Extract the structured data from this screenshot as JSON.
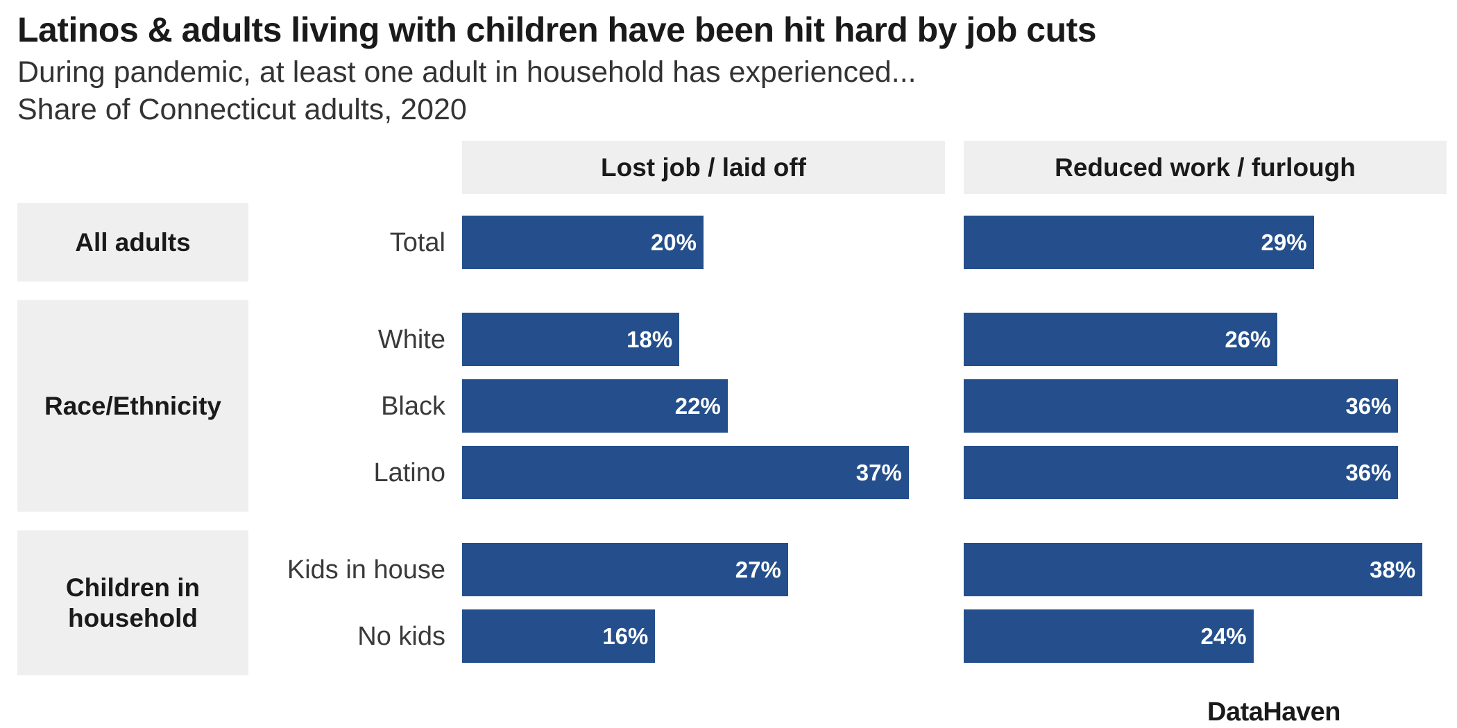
{
  "chart_data": {
    "type": "bar",
    "orientation": "horizontal",
    "title": "Latinos & adults living with children have been hit hard by job cuts",
    "subtitle_lines": [
      "During pandemic, at least one adult in household has experienced...",
      "Share of Connecticut adults, 2020"
    ],
    "facets": [
      "Lost job / laid off",
      "Reduced work / furlough"
    ],
    "groups": [
      {
        "label": "All adults",
        "rows": [
          {
            "label": "Total",
            "values": [
              20,
              29
            ],
            "value_labels": [
              "20%",
              "29%"
            ]
          }
        ]
      },
      {
        "label": "Race/Ethnicity",
        "rows": [
          {
            "label": "White",
            "values": [
              18,
              26
            ],
            "value_labels": [
              "18%",
              "26%"
            ]
          },
          {
            "label": "Black",
            "values": [
              22,
              36
            ],
            "value_labels": [
              "22%",
              "36%"
            ]
          },
          {
            "label": "Latino",
            "values": [
              37,
              36
            ],
            "value_labels": [
              "37%",
              "36%"
            ]
          }
        ]
      },
      {
        "label": "Children in household",
        "rows": [
          {
            "label": "Kids in house",
            "values": [
              27,
              38
            ],
            "value_labels": [
              "27%",
              "38%"
            ]
          },
          {
            "label": "No kids",
            "values": [
              16,
              24
            ],
            "value_labels": [
              "16%",
              "24%"
            ]
          }
        ]
      }
    ],
    "xlim": [
      0,
      40
    ],
    "bar_color": "#244f8c",
    "source": "DataHaven"
  }
}
